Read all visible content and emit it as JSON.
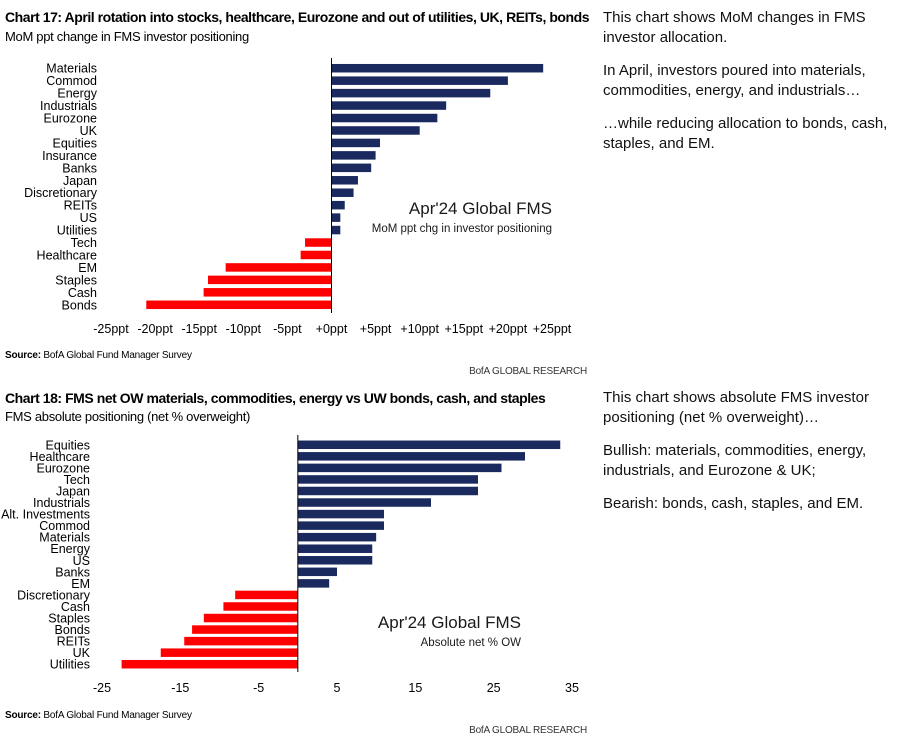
{
  "colors": {
    "positive": "#1b2a5e",
    "negative": "#ff0000",
    "axis": "#000000"
  },
  "charts": [
    {
      "chart_data": {
        "type": "bar",
        "orientation": "horizontal",
        "title": "Chart 17: April rotation into stocks, healthcare, Eurozone and out of utilities, UK, REITs, bonds",
        "subtitle": "MoM ppt change in FMS investor positioning",
        "categories": [
          "Materials",
          "Commod",
          "Energy",
          "Industrials",
          "Eurozone",
          "UK",
          "Equities",
          "Insurance",
          "Banks",
          "Japan",
          "Discretionary",
          "REITs",
          "US",
          "Utilities",
          "Tech",
          "Healthcare",
          "EM",
          "Staples",
          "Cash",
          "Bonds"
        ],
        "values": [
          24.0,
          20.0,
          18.0,
          13.0,
          12.0,
          10.0,
          5.5,
          5.0,
          4.5,
          3.0,
          2.5,
          1.5,
          1.0,
          1.0,
          -3.0,
          -3.5,
          -12.0,
          -14.0,
          -14.5,
          -21.0
        ],
        "xlim": [
          -25,
          25
        ],
        "xticks": [
          -25,
          -20,
          -15,
          -10,
          -5,
          0,
          5,
          10,
          15,
          20,
          25
        ],
        "xtick_labels": [
          "-25ppt",
          "-20ppt",
          "-15ppt",
          "-10ppt",
          "-5ppt",
          "+0ppt",
          "+5ppt",
          "+10ppt",
          "+15ppt",
          "+20ppt",
          "+25ppt"
        ],
        "annotation_title": "Apr'24 Global FMS",
        "annotation_sub": "MoM ppt chg in investor positioning",
        "legend": "none",
        "grid": false
      },
      "source_label": "Source:",
      "source_text": " BofA Global Fund Manager Survey",
      "brand": "BofA GLOBAL RESEARCH"
    },
    {
      "chart_data": {
        "type": "bar",
        "orientation": "horizontal",
        "title": "Chart 18: FMS net OW materials, commodities, energy vs UW bonds, cash, and staples",
        "subtitle": "FMS absolute positioning (net % overweight)",
        "categories": [
          "Equities",
          "Healthcare",
          "Eurozone",
          "Tech",
          "Japan",
          "Industrials",
          "Alt. Investments",
          "Commod",
          "Materials",
          "Energy",
          "US",
          "Banks",
          "EM",
          "Discretionary",
          "Cash",
          "Staples",
          "Bonds",
          "REITs",
          "UK",
          "Utilities"
        ],
        "values": [
          33.5,
          29.0,
          26.0,
          23.0,
          23.0,
          17.0,
          11.0,
          11.0,
          10.0,
          9.5,
          9.5,
          5.0,
          4.0,
          -8.0,
          -9.5,
          -12.0,
          -13.5,
          -14.5,
          -17.5,
          -22.5
        ],
        "xlim": [
          -25,
          35
        ],
        "xticks": [
          -25,
          -15,
          -5,
          5,
          15,
          25,
          35
        ],
        "xtick_labels": [
          "-25",
          "-15",
          "-5",
          "5",
          "15",
          "25",
          "35"
        ],
        "annotation_title": "Apr'24 Global FMS",
        "annotation_sub": "Absolute net % OW",
        "legend": "none",
        "grid": false
      },
      "source_label": "Source:",
      "source_text": " BofA Global Fund Manager Survey",
      "brand": "BofA GLOBAL RESEARCH"
    }
  ],
  "notes": {
    "n17": [
      "This chart shows MoM changes in FMS investor allocation.",
      "In April, investors poured into materials, commodities, energy, and industrials…",
      "…while reducing allocation to bonds, cash, staples, and EM."
    ],
    "n18": [
      "This chart shows absolute FMS investor positioning (net % overweight)…",
      "Bullish: materials, commodities, energy, industrials, and Eurozone & UK;",
      "Bearish: bonds, cash, staples, and EM."
    ]
  }
}
